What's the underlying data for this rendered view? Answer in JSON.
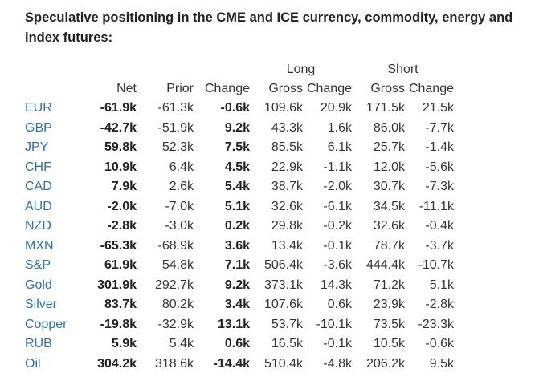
{
  "title": "Speculative positioning in the CME and ICE currency, commodity, energy and index futures:",
  "table": {
    "group_headers": {
      "long": "Long",
      "short": "Short"
    },
    "headers": [
      "Net",
      "Prior",
      "Change",
      "Gross",
      "Change",
      "Gross",
      "Change"
    ],
    "rows": [
      {
        "label": "EUR",
        "net": "-61.9k",
        "prior": "-61.3k",
        "change": "-0.6k",
        "long_gross": "109.6k",
        "long_change": "20.9k",
        "short_gross": "171.5k",
        "short_change": "21.5k"
      },
      {
        "label": "GBP",
        "net": "-42.7k",
        "prior": "-51.9k",
        "change": "9.2k",
        "long_gross": "43.3k",
        "long_change": "1.6k",
        "short_gross": "86.0k",
        "short_change": "-7.7k"
      },
      {
        "label": "JPY",
        "net": "59.8k",
        "prior": "52.3k",
        "change": "7.5k",
        "long_gross": "85.5k",
        "long_change": "6.1k",
        "short_gross": "25.7k",
        "short_change": "-1.4k"
      },
      {
        "label": "CHF",
        "net": "10.9k",
        "prior": "6.4k",
        "change": "4.5k",
        "long_gross": "22.9k",
        "long_change": "-1.1k",
        "short_gross": "12.0k",
        "short_change": "-5.6k"
      },
      {
        "label": "CAD",
        "net": "7.9k",
        "prior": "2.6k",
        "change": "5.4k",
        "long_gross": "38.7k",
        "long_change": "-2.0k",
        "short_gross": "30.7k",
        "short_change": "-7.3k"
      },
      {
        "label": "AUD",
        "net": "-2.0k",
        "prior": "-7.0k",
        "change": "5.1k",
        "long_gross": "32.6k",
        "long_change": "-6.1k",
        "short_gross": "34.5k",
        "short_change": "-11.1k"
      },
      {
        "label": "NZD",
        "net": "-2.8k",
        "prior": "-3.0k",
        "change": "0.2k",
        "long_gross": "29.8k",
        "long_change": "-0.2k",
        "short_gross": "32.6k",
        "short_change": "-0.4k"
      },
      {
        "label": "MXN",
        "net": "-65.3k",
        "prior": "-68.9k",
        "change": "3.6k",
        "long_gross": "13.4k",
        "long_change": "-0.1k",
        "short_gross": "78.7k",
        "short_change": "-3.7k"
      },
      {
        "label": "S&P",
        "net": "61.9k",
        "prior": "54.8k",
        "change": "7.1k",
        "long_gross": "506.4k",
        "long_change": "-3.6k",
        "short_gross": "444.4k",
        "short_change": "-10.7k"
      },
      {
        "label": "Gold",
        "net": "301.9k",
        "prior": "292.7k",
        "change": "9.2k",
        "long_gross": "373.1k",
        "long_change": "14.3k",
        "short_gross": "71.2k",
        "short_change": "5.1k"
      },
      {
        "label": "Silver",
        "net": "83.7k",
        "prior": "80.2k",
        "change": "3.4k",
        "long_gross": "107.6k",
        "long_change": "0.6k",
        "short_gross": "23.9k",
        "short_change": "-2.8k"
      },
      {
        "label": "Copper",
        "net": "-19.8k",
        "prior": "-32.9k",
        "change": "13.1k",
        "long_gross": "53.7k",
        "long_change": "-10.1k",
        "short_gross": "73.5k",
        "short_change": "-23.3k"
      },
      {
        "label": "RUB",
        "net": "5.9k",
        "prior": "5.4k",
        "change": "0.6k",
        "long_gross": "16.5k",
        "long_change": "-0.1k",
        "short_gross": "10.5k",
        "short_change": "-0.6k"
      },
      {
        "label": "Oil",
        "net": "304.2k",
        "prior": "318.6k",
        "change": "-14.4k",
        "long_gross": "510.4k",
        "long_change": "-4.8k",
        "short_gross": "206.2k",
        "short_change": "9.5k"
      }
    ]
  },
  "colors": {
    "row_label": "#2f6fa8",
    "text": "#333333",
    "title": "#222222"
  }
}
